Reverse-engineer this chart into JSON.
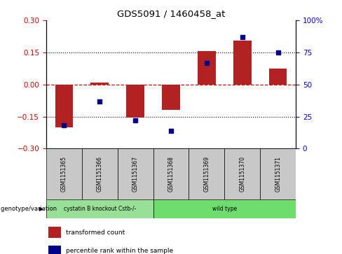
{
  "title": "GDS5091 / 1460458_at",
  "samples": [
    "GSM1151365",
    "GSM1151366",
    "GSM1151367",
    "GSM1151368",
    "GSM1151369",
    "GSM1151370",
    "GSM1151371"
  ],
  "bar_values": [
    -0.2,
    0.01,
    -0.155,
    -0.12,
    0.155,
    0.205,
    0.075
  ],
  "dot_values_pct": [
    18,
    37,
    22,
    14,
    67,
    87,
    75
  ],
  "ylim_left": [
    -0.3,
    0.3
  ],
  "ylim_right": [
    0,
    100
  ],
  "yticks_left": [
    -0.3,
    -0.15,
    0,
    0.15,
    0.3
  ],
  "yticks_right": [
    0,
    25,
    50,
    75,
    100
  ],
  "bar_color": "#B22222",
  "dot_color": "#00008B",
  "zero_line_color": "#CC0000",
  "grid_color": "#000000",
  "background_color": "#FFFFFF",
  "genotype_labels": [
    "cystatin B knockout Cstb-/-",
    "wild type"
  ],
  "genotype_colors": [
    "#90EE90",
    "#90EE90"
  ],
  "legend_bar_label": "transformed count",
  "legend_dot_label": "percentile rank within the sample",
  "genotype_row_label": "genotype/variation",
  "tick_label_color_left": "#CC0000",
  "tick_label_color_right": "#0000CC",
  "bar_width": 0.5,
  "sample_bg_color": "#C8C8C8",
  "figwidth": 4.88,
  "figheight": 3.63,
  "dpi": 100
}
